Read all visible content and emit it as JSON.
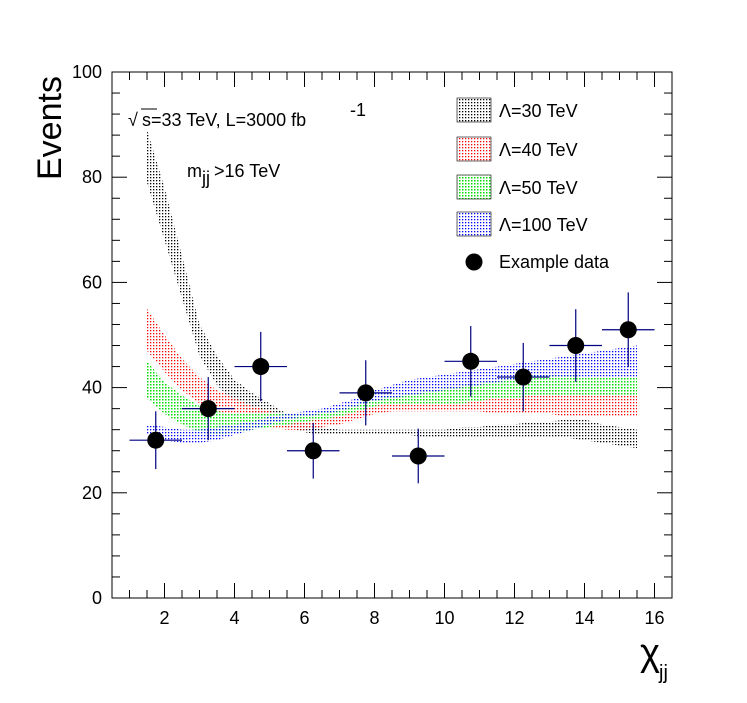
{
  "chart_data": {
    "type": "scatter",
    "ylabel": "Events",
    "xlabel": "χ",
    "xlabel_sub": "jj",
    "xlim": [
      0.5,
      16.5
    ],
    "ylim": [
      0,
      100
    ],
    "xticks": [
      "2",
      "4",
      "6",
      "8",
      "10",
      "12",
      "14",
      "16"
    ],
    "yticks": [
      "0",
      "20",
      "40",
      "60",
      "80",
      "100"
    ],
    "annotation1": {
      "sqrt": "√",
      "text": "s=33 TeV, L=3000 fb",
      "sup": "-1"
    },
    "annotation2": {
      "m": "m",
      "sub": "jj",
      "rest": ">16 TeV"
    },
    "bands": [
      {
        "name": "Λ=30 TeV",
        "color": "#000000",
        "x": [
          1.5,
          2.0,
          2.5,
          3.0,
          3.5,
          4.0,
          4.5,
          5.0,
          5.5,
          6.0,
          6.5,
          7.0,
          7.5,
          8.0,
          8.5,
          9.0,
          9.5,
          10.0,
          10.5,
          11.0,
          11.5,
          12.0,
          12.5,
          13.0,
          13.5,
          14.0,
          14.5,
          15.0,
          15.5
        ],
        "lo": [
          79,
          68,
          57,
          46,
          40.5,
          37,
          35,
          33.5,
          32.5,
          31.5,
          31,
          31,
          31,
          31,
          31,
          31,
          30.5,
          30.5,
          30.5,
          30.5,
          30.5,
          30.5,
          30.5,
          30.5,
          30.5,
          30,
          29.5,
          29,
          28.5
        ],
        "hi": [
          89,
          78,
          65,
          52,
          46,
          41.5,
          39,
          37,
          35,
          33.5,
          32.5,
          32,
          32,
          32,
          32,
          32,
          32,
          32,
          32.5,
          32.5,
          33,
          33,
          33.5,
          33.5,
          34,
          34,
          33,
          32.5,
          32
        ]
      },
      {
        "name": "Λ=40 TeV",
        "color": "#ff0000",
        "x": [
          1.5,
          2.0,
          2.5,
          3.0,
          3.5,
          4.0,
          4.5,
          5.0,
          5.5,
          6.0,
          6.5,
          7.0,
          7.5,
          8.0,
          8.5,
          9.0,
          9.5,
          10.0,
          10.5,
          11.0,
          11.5,
          12.0,
          12.5,
          13.0,
          13.5,
          14.0,
          14.5,
          15.0,
          15.5
        ],
        "lo": [
          47,
          43,
          39.5,
          37,
          35,
          34,
          33,
          32.5,
          32,
          32,
          32.5,
          33,
          34,
          35,
          35.5,
          35.5,
          35.5,
          35.5,
          35.5,
          35.5,
          35,
          35,
          35,
          35,
          34.5,
          34.5,
          34.5,
          34.5,
          34.5
        ],
        "hi": [
          55,
          50,
          45.5,
          42,
          39.5,
          38,
          36.5,
          35.5,
          34.5,
          34,
          34,
          34.5,
          35.5,
          37,
          37.5,
          37.5,
          38,
          38.5,
          39,
          39.5,
          40,
          40.5,
          40.5,
          40,
          40,
          40,
          40,
          40,
          40
        ]
      },
      {
        "name": "Λ=50 TeV",
        "color": "#00cc00",
        "x": [
          1.5,
          2.0,
          2.5,
          3.0,
          3.5,
          4.0,
          4.5,
          5.0,
          5.5,
          6.0,
          6.5,
          7.0,
          7.5,
          8.0,
          8.5,
          9.0,
          9.5,
          10.0,
          10.5,
          11.0,
          11.5,
          12.0,
          12.5,
          13.0,
          13.5,
          14.0,
          14.5,
          15.0,
          15.5
        ],
        "lo": [
          38,
          35,
          33,
          31.5,
          31,
          31.5,
          32,
          32.5,
          33,
          33.5,
          34,
          34.5,
          35.5,
          36.5,
          37,
          37,
          37,
          37,
          37,
          37.5,
          38,
          38,
          38.5,
          38.5,
          38.5,
          38.5,
          38.5,
          38.5,
          38.5
        ],
        "hi": [
          45,
          41,
          38.5,
          36.5,
          35.5,
          35,
          35,
          35,
          35,
          35,
          35.5,
          36,
          37,
          38,
          38.5,
          39,
          39.5,
          40,
          40.5,
          41,
          41.5,
          42,
          42.5,
          42.5,
          42.5,
          42,
          42,
          42,
          42
        ]
      },
      {
        "name": "Λ=100 TeV",
        "color": "#0000ff",
        "x": [
          1.5,
          2.0,
          2.5,
          3.0,
          3.5,
          4.0,
          4.5,
          5.0,
          5.5,
          6.0,
          6.5,
          7.0,
          7.5,
          8.0,
          8.5,
          9.0,
          9.5,
          10.0,
          10.5,
          11.0,
          11.5,
          12.0,
          12.5,
          13.0,
          13.5,
          14.0,
          14.5,
          15.0,
          15.5
        ],
        "lo": [
          31,
          30,
          29.5,
          29.5,
          30,
          31,
          32,
          33,
          34,
          34.5,
          35,
          35.5,
          36.5,
          37.5,
          38,
          38.5,
          39,
          39.5,
          40,
          40.5,
          41,
          41.5,
          42,
          42,
          42,
          42,
          42,
          42,
          42
        ],
        "hi": [
          33,
          32.5,
          32,
          32,
          32.5,
          33,
          33.5,
          34.5,
          35,
          35.5,
          36,
          37,
          38,
          39.5,
          40.5,
          41.5,
          42,
          42.5,
          43,
          43.5,
          44,
          44.5,
          45,
          45.5,
          46,
          46.5,
          47,
          47.5,
          48
        ]
      }
    ],
    "data": {
      "name": "Example data",
      "x": [
        1.75,
        3.25,
        4.75,
        6.25,
        7.75,
        9.25,
        10.75,
        12.25,
        13.75,
        15.25
      ],
      "y": [
        30,
        36,
        44,
        28,
        39,
        27,
        45,
        42,
        48,
        51
      ],
      "yerr": [
        5.5,
        6,
        6.6,
        5.3,
        6.2,
        5.2,
        6.7,
        6.5,
        6.9,
        7.1
      ],
      "xerr": 0.75,
      "color": "#000000",
      "errcolor": "#000080"
    }
  }
}
